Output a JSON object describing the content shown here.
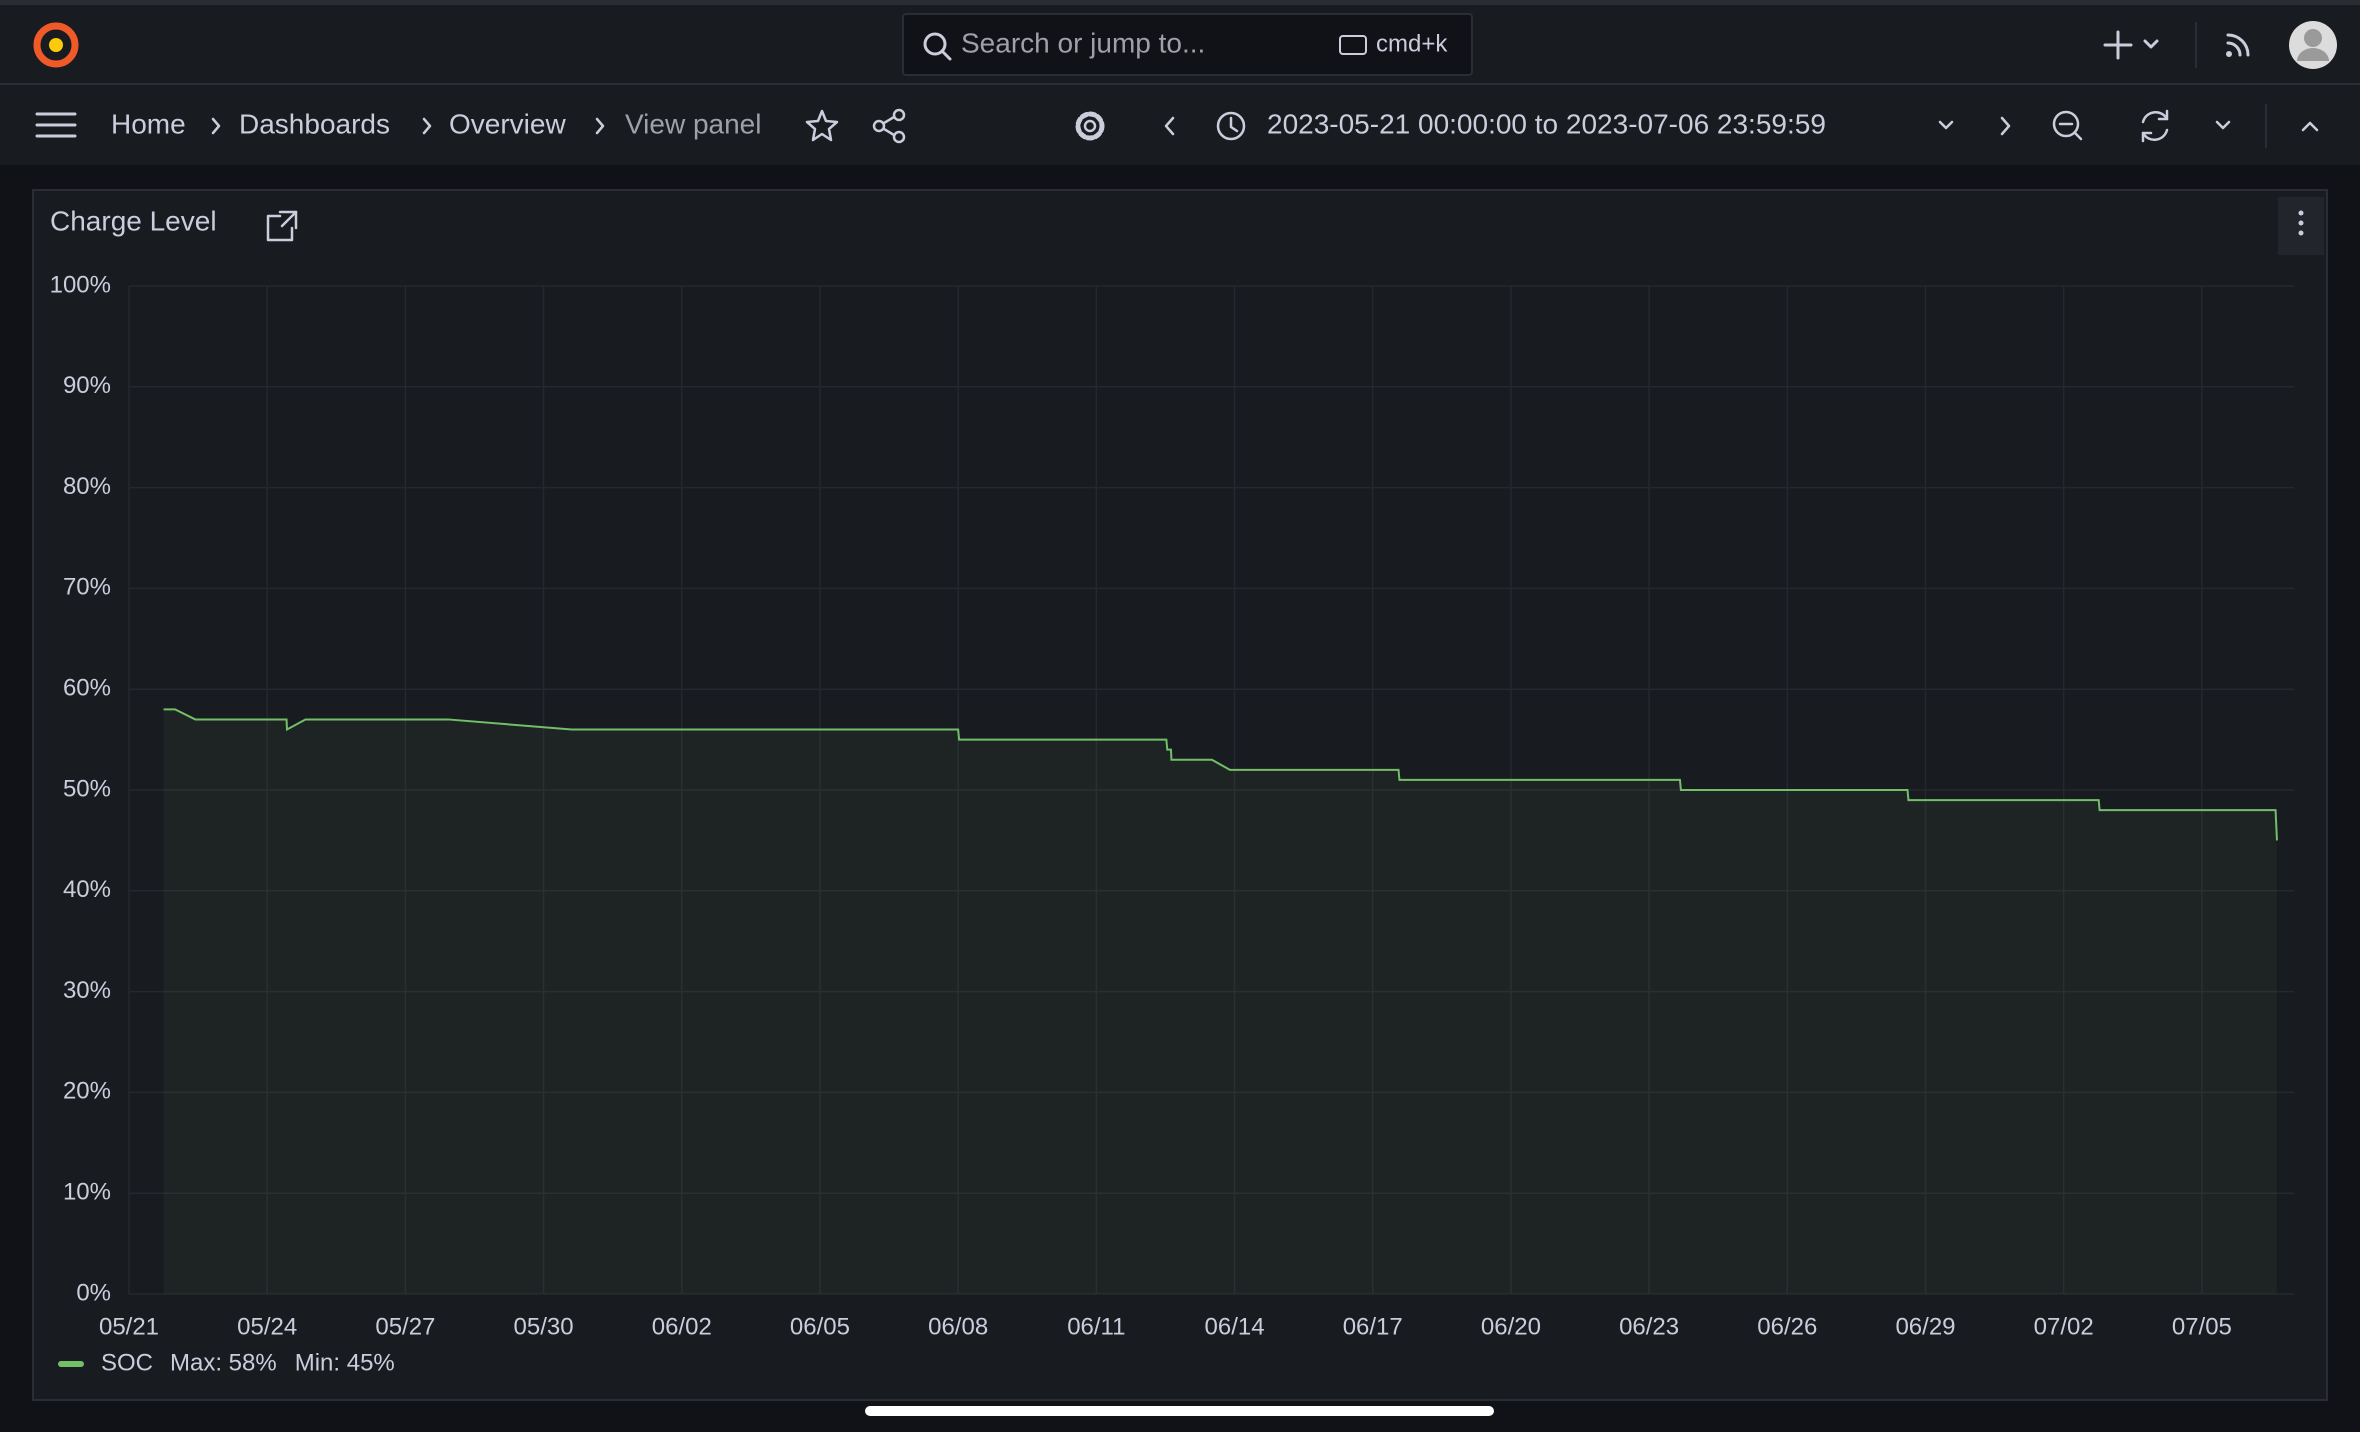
{
  "search": {
    "placeholder": "Search or jump to...",
    "shortcut": "cmd+k"
  },
  "breadcrumbs": [
    "Home",
    "Dashboards",
    "Overview",
    "View panel"
  ],
  "time_range": "2023-05-21 00:00:00 to 2023-07-06 23:59:59",
  "chart_data": {
    "type": "line",
    "title": "Charge Level",
    "x": [
      0.75,
      1.0,
      1.44,
      3.42,
      3.43,
      3.83,
      6.93,
      9.61,
      18.0,
      18.02,
      22.52,
      22.54,
      22.62,
      22.63,
      23.51,
      23.9,
      27.56,
      27.58,
      33.67,
      33.69,
      38.61,
      38.63,
      42.76,
      42.78,
      46.6,
      46.63
    ],
    "series": [
      {
        "name": "SOC",
        "color": "#73bf69",
        "values": [
          58,
          58,
          57,
          57,
          56,
          57,
          57,
          56,
          56,
          55,
          55,
          54,
          54,
          53,
          53,
          52,
          52,
          51,
          51,
          50,
          50,
          49,
          49,
          48,
          48,
          45
        ]
      }
    ],
    "legend_stats": [
      "Max: 58%",
      "Min: 45%"
    ],
    "xlim": [
      0,
      47
    ],
    "xticks": [
      {
        "value": 0,
        "label": "05/21"
      },
      {
        "value": 3,
        "label": "05/24"
      },
      {
        "value": 6,
        "label": "05/27"
      },
      {
        "value": 9,
        "label": "05/30"
      },
      {
        "value": 12,
        "label": "06/02"
      },
      {
        "value": 15,
        "label": "06/05"
      },
      {
        "value": 18,
        "label": "06/08"
      },
      {
        "value": 21,
        "label": "06/11"
      },
      {
        "value": 24,
        "label": "06/14"
      },
      {
        "value": 27,
        "label": "06/17"
      },
      {
        "value": 30,
        "label": "06/20"
      },
      {
        "value": 33,
        "label": "06/23"
      },
      {
        "value": 36,
        "label": "06/26"
      },
      {
        "value": 39,
        "label": "06/29"
      },
      {
        "value": 42,
        "label": "07/02"
      },
      {
        "value": 45,
        "label": "07/05"
      }
    ],
    "ylim": [
      0,
      100
    ],
    "yticks": [
      {
        "value": 0,
        "label": "0%"
      },
      {
        "value": 10,
        "label": "10%"
      },
      {
        "value": 20,
        "label": "20%"
      },
      {
        "value": 30,
        "label": "30%"
      },
      {
        "value": 40,
        "label": "40%"
      },
      {
        "value": 50,
        "label": "50%"
      },
      {
        "value": 60,
        "label": "60%"
      },
      {
        "value": 70,
        "label": "70%"
      },
      {
        "value": 80,
        "label": "80%"
      },
      {
        "value": 90,
        "label": "90%"
      },
      {
        "value": 100,
        "label": "100%"
      }
    ],
    "grid": true
  }
}
